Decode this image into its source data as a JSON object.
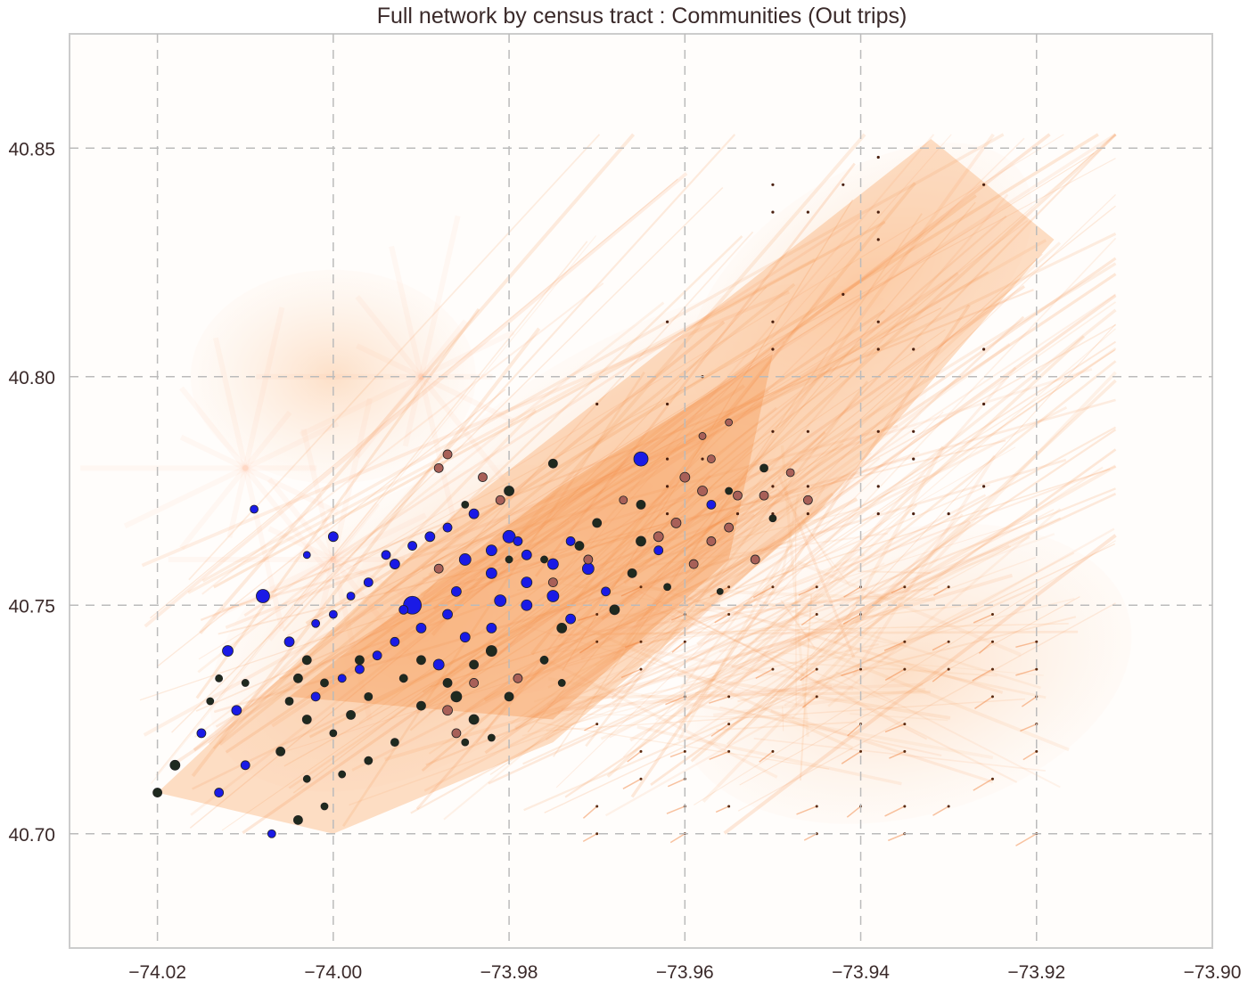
{
  "chart_data": {
    "type": "scatter",
    "title": "Full network by census tract : Communities (Out trips)",
    "xlabel": "",
    "ylabel": "",
    "xlim": [
      -74.03,
      -73.9
    ],
    "ylim": [
      40.675,
      40.875
    ],
    "x_ticks": [
      -74.02,
      -74.0,
      -73.98,
      -73.96,
      -73.94,
      -73.92,
      -73.9
    ],
    "x_tick_labels": [
      "−74.02",
      "−74.00",
      "−73.98",
      "−73.96",
      "−73.94",
      "−73.92",
      "−73.90"
    ],
    "y_ticks": [
      40.7,
      40.75,
      40.8,
      40.85
    ],
    "y_tick_labels": [
      "40.70",
      "40.75",
      "40.80",
      "40.85"
    ],
    "grid": true,
    "legend": "none",
    "colors": {
      "community_blue": "#1a1ae6",
      "community_dark": "#1f2a1f",
      "community_brown": "#a86058",
      "edges": "#f7a060",
      "grid": "#bbbbbb"
    },
    "series": [
      {
        "color": "blue",
        "points": [
          [
            -73.965,
            40.782,
            14
          ],
          [
            -73.98,
            40.765,
            12
          ],
          [
            -73.991,
            40.75,
            18
          ],
          [
            -74.008,
            40.752,
            13
          ],
          [
            -74.0,
            40.765,
            9
          ],
          [
            -73.994,
            40.761,
            8
          ],
          [
            -73.984,
            40.77,
            9
          ],
          [
            -73.987,
            40.767,
            8
          ],
          [
            -73.989,
            40.765,
            9
          ],
          [
            -73.991,
            40.763,
            8
          ],
          [
            -73.993,
            40.759,
            9
          ],
          [
            -73.996,
            40.755,
            8
          ],
          [
            -73.998,
            40.752,
            7
          ],
          [
            -74.0,
            40.748,
            7
          ],
          [
            -74.002,
            40.746,
            7
          ],
          [
            -74.005,
            40.742,
            9
          ],
          [
            -73.99,
            40.745,
            9
          ],
          [
            -73.993,
            40.742,
            8
          ],
          [
            -73.995,
            40.739,
            8
          ],
          [
            -73.997,
            40.736,
            8
          ],
          [
            -73.999,
            40.734,
            7
          ],
          [
            -74.002,
            40.73,
            8
          ],
          [
            -73.988,
            40.737,
            10
          ],
          [
            -73.992,
            40.749,
            8
          ],
          [
            -73.986,
            40.753,
            9
          ],
          [
            -73.982,
            40.757,
            10
          ],
          [
            -73.978,
            40.761,
            9
          ],
          [
            -73.985,
            40.76,
            11
          ],
          [
            -73.982,
            40.762,
            10
          ],
          [
            -73.978,
            40.755,
            10
          ],
          [
            -73.975,
            40.752,
            11
          ],
          [
            -73.973,
            40.747,
            9
          ],
          [
            -73.978,
            40.75,
            10
          ],
          [
            -73.982,
            40.745,
            9
          ],
          [
            -73.985,
            40.743,
            9
          ],
          [
            -73.987,
            40.748,
            9
          ],
          [
            -73.981,
            40.751,
            11
          ],
          [
            -73.975,
            40.759,
            10
          ],
          [
            -73.971,
            40.758,
            11
          ],
          [
            -73.969,
            40.753,
            8
          ],
          [
            -73.973,
            40.764,
            8
          ],
          [
            -73.979,
            40.764,
            8
          ],
          [
            -73.963,
            40.762,
            8
          ],
          [
            -73.957,
            40.772,
            8
          ],
          [
            -74.003,
            40.761,
            6
          ],
          [
            -74.009,
            40.771,
            7
          ],
          [
            -74.012,
            40.74,
            10
          ],
          [
            -74.011,
            40.727,
            9
          ],
          [
            -74.015,
            40.722,
            8
          ],
          [
            -74.01,
            40.715,
            8
          ],
          [
            -74.013,
            40.709,
            8
          ],
          [
            -74.007,
            40.7,
            7
          ]
        ]
      },
      {
        "color": "dark",
        "points": [
          [
            -73.98,
            40.775,
            9
          ],
          [
            -73.985,
            40.772,
            6
          ],
          [
            -73.975,
            40.781,
            8
          ],
          [
            -73.965,
            40.772,
            8
          ],
          [
            -73.97,
            40.768,
            8
          ],
          [
            -73.972,
            40.763,
            8
          ],
          [
            -73.965,
            40.764,
            9
          ],
          [
            -73.966,
            40.757,
            8
          ],
          [
            -73.968,
            40.749,
            9
          ],
          [
            -73.962,
            40.754,
            6
          ],
          [
            -73.974,
            40.745,
            9
          ],
          [
            -73.976,
            40.738,
            7
          ],
          [
            -73.982,
            40.74,
            10
          ],
          [
            -73.984,
            40.737,
            8
          ],
          [
            -73.987,
            40.733,
            8
          ],
          [
            -73.99,
            40.728,
            8
          ],
          [
            -73.992,
            40.734,
            7
          ],
          [
            -73.996,
            40.73,
            7
          ],
          [
            -73.998,
            40.726,
            8
          ],
          [
            -74.0,
            40.722,
            6
          ],
          [
            -74.003,
            40.738,
            8
          ],
          [
            -74.004,
            40.734,
            8
          ],
          [
            -74.005,
            40.729,
            7
          ],
          [
            -74.003,
            40.725,
            8
          ],
          [
            -74.001,
            40.733,
            7
          ],
          [
            -73.997,
            40.738,
            8
          ],
          [
            -73.99,
            40.738,
            8
          ],
          [
            -73.986,
            40.73,
            10
          ],
          [
            -73.984,
            40.725,
            9
          ],
          [
            -73.98,
            40.73,
            8
          ],
          [
            -73.993,
            40.72,
            7
          ],
          [
            -73.996,
            40.716,
            7
          ],
          [
            -73.999,
            40.713,
            6
          ],
          [
            -74.003,
            40.712,
            6
          ],
          [
            -74.006,
            40.718,
            8
          ],
          [
            -74.01,
            40.733,
            6
          ],
          [
            -74.013,
            40.734,
            6
          ],
          [
            -74.014,
            40.729,
            6
          ],
          [
            -74.018,
            40.715,
            9
          ],
          [
            -74.02,
            40.709,
            8
          ],
          [
            -74.004,
            40.703,
            8
          ],
          [
            -74.001,
            40.706,
            6
          ],
          [
            -73.985,
            40.72,
            6
          ],
          [
            -73.982,
            40.721,
            6
          ],
          [
            -73.974,
            40.733,
            6
          ],
          [
            -73.98,
            40.76,
            6
          ],
          [
            -73.976,
            40.76,
            6
          ],
          [
            -73.95,
            40.769,
            6
          ],
          [
            -73.951,
            40.78,
            7
          ],
          [
            -73.955,
            40.775,
            6
          ],
          [
            -73.956,
            40.753,
            5
          ]
        ]
      },
      {
        "color": "brown",
        "points": [
          [
            -73.983,
            40.778,
            8
          ],
          [
            -73.987,
            40.783,
            8
          ],
          [
            -73.988,
            40.78,
            8
          ],
          [
            -73.981,
            40.773,
            8
          ],
          [
            -73.96,
            40.778,
            9
          ],
          [
            -73.958,
            40.775,
            9
          ],
          [
            -73.961,
            40.768,
            9
          ],
          [
            -73.963,
            40.765,
            9
          ],
          [
            -73.959,
            40.759,
            8
          ],
          [
            -73.957,
            40.764,
            8
          ],
          [
            -73.955,
            40.767,
            8
          ],
          [
            -73.954,
            40.774,
            8
          ],
          [
            -73.951,
            40.774,
            8
          ],
          [
            -73.952,
            40.76,
            8
          ],
          [
            -73.948,
            40.779,
            7
          ],
          [
            -73.946,
            40.773,
            8
          ],
          [
            -73.971,
            40.76,
            8
          ],
          [
            -73.987,
            40.727,
            9
          ],
          [
            -73.984,
            40.733,
            8
          ],
          [
            -73.979,
            40.734,
            8
          ],
          [
            -73.986,
            40.722,
            8
          ],
          [
            -73.957,
            40.782,
            7
          ],
          [
            -73.955,
            40.79,
            6
          ],
          [
            -73.958,
            40.787,
            6
          ],
          [
            -73.975,
            40.755,
            8
          ],
          [
            -73.988,
            40.758,
            8
          ],
          [
            -73.967,
            40.773,
            7
          ]
        ]
      }
    ]
  }
}
